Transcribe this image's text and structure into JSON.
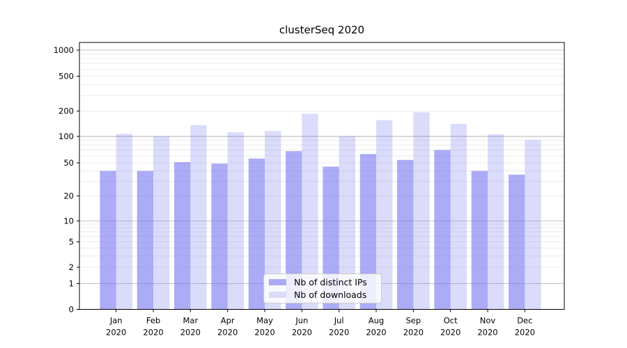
{
  "title": "clusterSeq 2020",
  "legend": {
    "items": [
      {
        "label": "Nb of distinct IPs",
        "swatch": "#aaaaf5"
      },
      {
        "label": "Nb of downloads",
        "swatch": "#dcdcfa"
      }
    ]
  },
  "colors": {
    "ips_fill": "rgba(110,110,240,0.58)",
    "downloads_fill": "rgba(110,110,240,0.25)",
    "grid_minor": "#ebebeb",
    "grid_major": "#c2c2c2",
    "grid_major_100": "#b0b0b0",
    "axis": "#000000",
    "text": "#000000"
  },
  "chart_data": {
    "type": "bar",
    "title": "clusterSeq 2020",
    "categories": [
      "Jan 2020",
      "Feb 2020",
      "Mar 2020",
      "Apr 2020",
      "May 2020",
      "Jun 2020",
      "Jul 2020",
      "Aug 2020",
      "Sep 2020",
      "Oct 2020",
      "Nov 2020",
      "Dec 2020"
    ],
    "series": [
      {
        "name": "Nb of distinct IPs",
        "values": [
          40,
          40,
          51,
          49,
          56,
          68,
          45,
          63,
          54,
          70,
          40,
          36
        ]
      },
      {
        "name": "Nb of downloads",
        "values": [
          107,
          100,
          136,
          112,
          116,
          185,
          101,
          156,
          193,
          141,
          106,
          91
        ]
      }
    ],
    "xlabel": "",
    "ylabel": "",
    "yscale": "symlog",
    "yticks": [
      0,
      1,
      2,
      5,
      10,
      20,
      50,
      100,
      200,
      500,
      1000
    ],
    "ylim": [
      0,
      1400
    ],
    "grid": true,
    "legend_position": "lower center"
  }
}
